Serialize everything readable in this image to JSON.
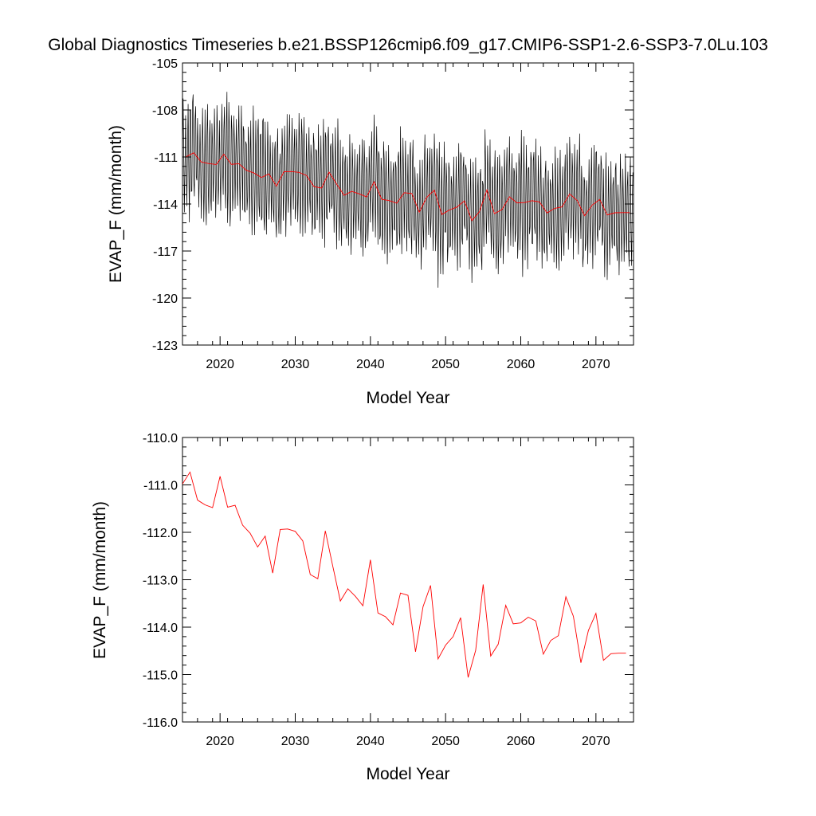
{
  "title": "Global Diagnostics Timeseries b.e21.BSSP126cmip6.f09_g17.CMIP6-SSP1-2.6-SSP3-7.0Lu.103",
  "colors": {
    "monthly": "#000000",
    "annual": "#ff0000",
    "axes": "#000000",
    "background": "#ffffff"
  },
  "chart_data": [
    {
      "type": "line",
      "xlabel": "Model Year",
      "ylabel": "EVAP_F (mm/month)",
      "xlim": [
        2015,
        2075
      ],
      "ylim": [
        -123,
        -105
      ],
      "xticks": [
        2020,
        2030,
        2040,
        2050,
        2060,
        2070
      ],
      "xtick_labels": [
        "2020",
        "2030",
        "2040",
        "2050",
        "2060",
        "2070"
      ],
      "yticks": [
        -123,
        -120,
        -117,
        -114,
        -111,
        -108,
        -105
      ],
      "ytick_labels": [
        "-123",
        "-120",
        "-117",
        "-114",
        "-111",
        "-108",
        "-105"
      ],
      "grid": false,
      "series": [
        {
          "role": "monthly",
          "color": "#000000",
          "start_year": 2015,
          "annual_mean_offset": [
            -0.2,
            0.4,
            -0.3,
            0.0,
            0.3,
            0.1,
            -0.1,
            0.2,
            -0.2,
            0.0,
            0.3,
            -0.1,
            0.1,
            -0.3,
            0.2,
            0.0,
            -0.2,
            0.1,
            0.3,
            -0.1,
            0.0,
            0.2,
            -0.2,
            0.1,
            -0.1,
            0.3,
            0.0,
            -0.2,
            0.2,
            0.1,
            -0.1,
            0.0,
            0.2,
            -0.3,
            0.1,
            0.0,
            -0.1,
            0.2,
            0.1,
            -0.2,
            0.0,
            0.3,
            -0.1,
            0.1,
            -0.2,
            0.0,
            0.2,
            -0.1,
            0.1,
            0.0,
            -0.2,
            0.1,
            0.2,
            -0.1,
            0.0,
            0.1,
            -0.2,
            0.2,
            0.0,
            -0.1
          ],
          "monthly_amplitude": [
            3.4,
            3.6,
            3.2,
            3.9,
            3.3,
            3.5,
            4.0,
            3.3,
            3.4,
            3.7,
            4.1,
            3.2,
            3.5,
            3.6,
            3.3,
            3.8,
            3.4,
            3.5,
            3.6,
            3.3,
            3.7,
            3.4,
            3.5,
            3.2,
            3.6,
            3.5,
            3.9,
            3.3,
            3.4,
            3.6,
            3.8,
            3.2,
            3.5,
            3.7,
            4.3,
            3.4,
            3.6,
            3.3,
            3.5,
            3.7,
            3.4,
            3.6,
            3.8,
            3.3,
            3.5,
            4.2,
            3.4,
            3.6,
            3.3,
            3.5,
            3.7,
            3.4,
            3.6,
            3.3,
            3.5,
            3.4,
            3.6,
            3.3,
            3.5,
            3.4
          ]
        },
        {
          "role": "annual",
          "color": "#ff0000",
          "x": "years",
          "y": "annual_mean"
        }
      ]
    },
    {
      "type": "line",
      "xlabel": "Model Year",
      "ylabel": "EVAP_F (mm/month)",
      "xlim": [
        2015,
        2075
      ],
      "ylim": [
        -116.0,
        -110.0
      ],
      "xticks": [
        2020,
        2030,
        2040,
        2050,
        2060,
        2070
      ],
      "xtick_labels": [
        "2020",
        "2030",
        "2040",
        "2050",
        "2060",
        "2070"
      ],
      "yticks": [
        -116.0,
        -115.0,
        -114.0,
        -113.0,
        -112.0,
        -111.0,
        -110.0
      ],
      "ytick_labels": [
        "-116.0",
        "-115.0",
        "-114.0",
        "-113.0",
        "-112.0",
        "-111.0",
        "-110.0"
      ],
      "grid": false,
      "series": [
        {
          "role": "annual",
          "color": "#ff0000",
          "x": [
            2015,
            2016,
            2017,
            2018,
            2019,
            2020,
            2021,
            2022,
            2023,
            2024,
            2025,
            2026,
            2027,
            2028,
            2029,
            2030,
            2031,
            2032,
            2033,
            2034,
            2035,
            2036,
            2037,
            2038,
            2039,
            2040,
            2041,
            2042,
            2043,
            2044,
            2045,
            2046,
            2047,
            2048,
            2049,
            2050,
            2051,
            2052,
            2053,
            2054,
            2055,
            2056,
            2057,
            2058,
            2059,
            2060,
            2061,
            2062,
            2063,
            2064,
            2065,
            2066,
            2067,
            2068,
            2069,
            2070,
            2071,
            2072,
            2073,
            2074
          ],
          "y": [
            -110.98,
            -110.73,
            -111.32,
            -111.42,
            -111.48,
            -110.82,
            -111.47,
            -111.43,
            -111.85,
            -112.02,
            -112.31,
            -112.08,
            -112.86,
            -111.94,
            -111.93,
            -111.98,
            -112.18,
            -112.89,
            -112.98,
            -111.97,
            -112.72,
            -113.45,
            -113.19,
            -113.35,
            -113.55,
            -112.58,
            -113.7,
            -113.78,
            -113.95,
            -113.28,
            -113.33,
            -114.52,
            -113.57,
            -113.12,
            -114.67,
            -114.38,
            -114.2,
            -113.8,
            -115.06,
            -114.49,
            -113.1,
            -114.61,
            -114.36,
            -113.54,
            -113.93,
            -113.91,
            -113.79,
            -113.87,
            -114.57,
            -114.28,
            -114.18,
            -113.36,
            -113.77,
            -114.75,
            -114.07,
            -113.71,
            -114.7,
            -114.56,
            -114.55,
            -114.55
          ]
        }
      ]
    }
  ]
}
